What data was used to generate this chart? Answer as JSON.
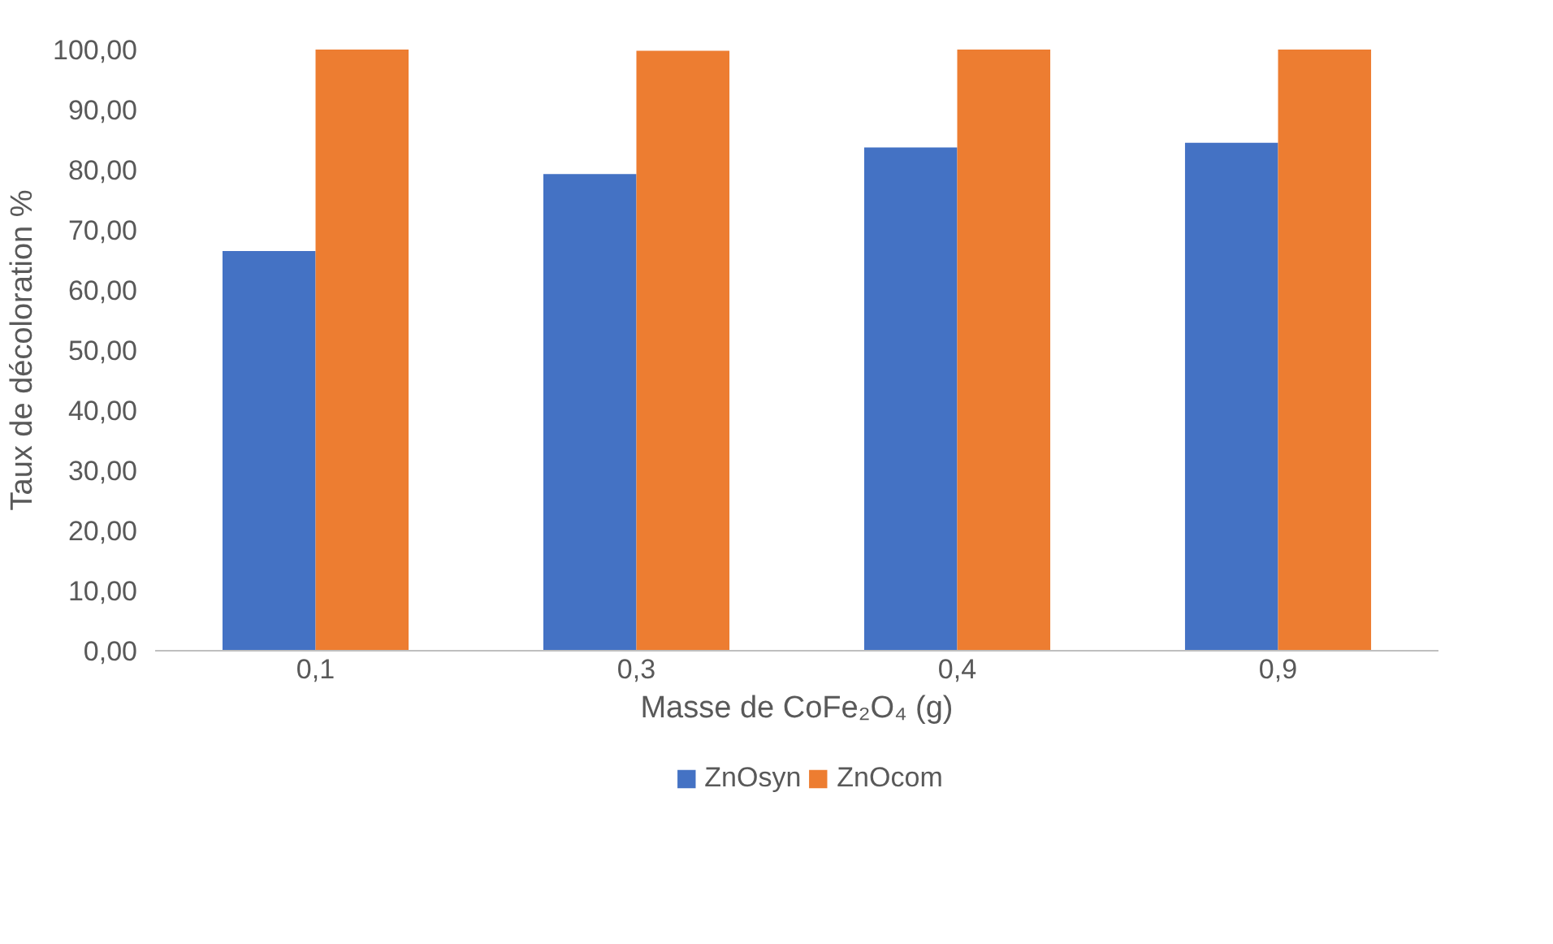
{
  "chart_data": {
    "type": "bar",
    "xlabel": "Masse de CoFe₂O₄ (g)",
    "ylabel": "Taux de décoloration %",
    "categories": [
      "0,1",
      "0,3",
      "0,4",
      "0,9"
    ],
    "series": [
      {
        "name": "ZnOsyn",
        "color": "#4472c4",
        "values": [
          66.5,
          79.3,
          83.7,
          84.5
        ]
      },
      {
        "name": "ZnOcom",
        "color": "#ed7d31",
        "values": [
          100.0,
          99.8,
          100.0,
          100.0
        ]
      }
    ],
    "ylim": [
      0,
      100
    ],
    "yticks": [
      {
        "value": 0,
        "label": "0,00"
      },
      {
        "value": 10,
        "label": "10,00"
      },
      {
        "value": 20,
        "label": "20,00"
      },
      {
        "value": 30,
        "label": "30,00"
      },
      {
        "value": 40,
        "label": "40,00"
      },
      {
        "value": 50,
        "label": "50,00"
      },
      {
        "value": 60,
        "label": "60,00"
      },
      {
        "value": 70,
        "label": "70,00"
      },
      {
        "value": 80,
        "label": "80,00"
      },
      {
        "value": 90,
        "label": "90,00"
      },
      {
        "value": 100,
        "label": "100,00"
      }
    ],
    "grid": false,
    "legend": "bottom"
  }
}
